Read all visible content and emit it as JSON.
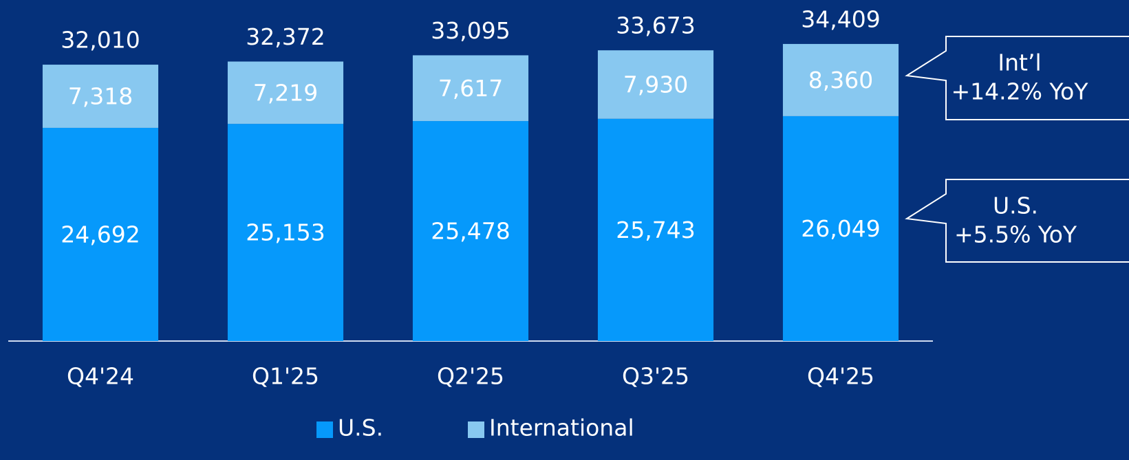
{
  "chart_data": {
    "type": "stacked_bar",
    "categories": [
      "Q4'24",
      "Q1'25",
      "Q2'25",
      "Q3'25",
      "Q4'25"
    ],
    "series": [
      {
        "name": "U.S.",
        "color": "#0699fb",
        "values": [
          24692,
          25153,
          25478,
          25743,
          26049
        ],
        "value_labels": [
          "24,692",
          "25,153",
          "25,478",
          "25,743",
          "26,049"
        ]
      },
      {
        "name": "International",
        "color": "#88c8f0",
        "values": [
          7318,
          7219,
          7617,
          7930,
          8360
        ],
        "value_labels": [
          "7,318",
          "7,219",
          "7,617",
          "7,930",
          "8,360"
        ]
      }
    ],
    "totals": [
      32010,
      32372,
      33095,
      33673,
      34409
    ],
    "total_labels": [
      "32,010",
      "32,372",
      "33,095",
      "33,673",
      "34,409"
    ],
    "ylim": [
      0,
      39500
    ],
    "annotations": [
      {
        "lines": [
          "Int’l",
          "+14.2% YoY"
        ]
      },
      {
        "lines": [
          "U.S.",
          "+5.5% YoY"
        ]
      }
    ]
  }
}
